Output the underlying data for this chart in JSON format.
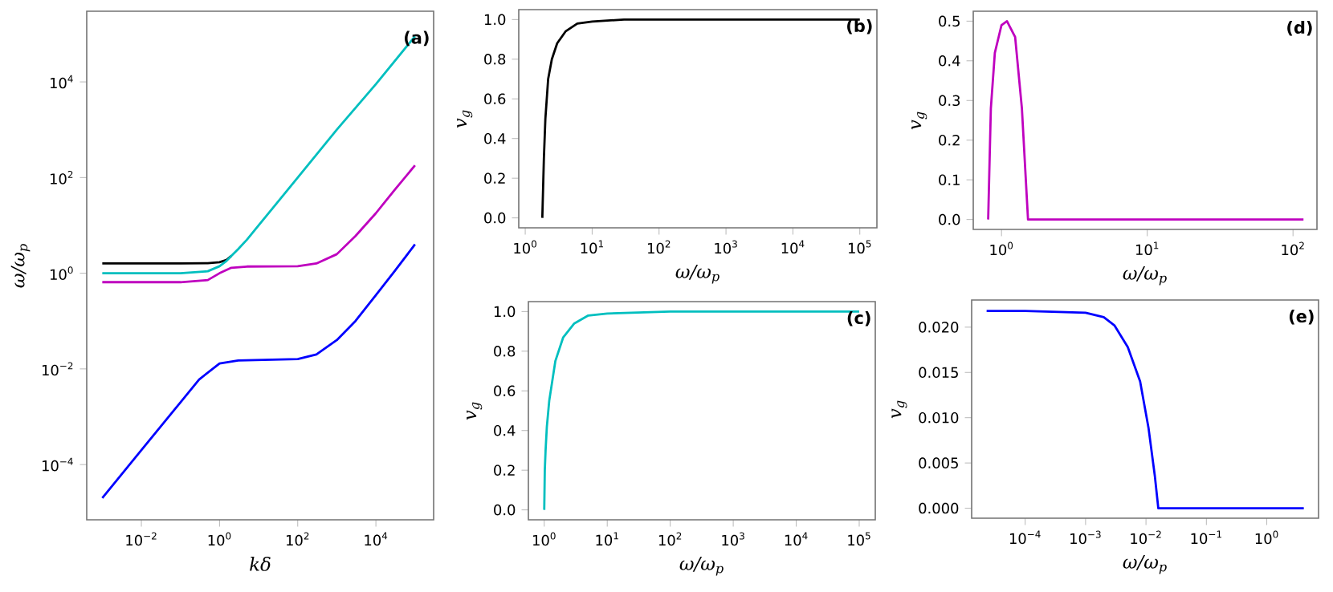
{
  "chart_data": [
    {
      "type": "line",
      "xlabel": "kδ",
      "ylabel": "ω/ω$_{p}$",
      "annotations": [
        "(a)"
      ],
      "log": "xy",
      "xlim": [
        0.0004,
        300000
      ],
      "ylim": [
        7e-06,
        300000
      ],
      "xticks": [
        {
          "value": 0.01,
          "label": "10$^{−2}$"
        },
        {
          "value": 1,
          "label": "10$^{0}$"
        },
        {
          "value": 100,
          "label": "10$^{2}$"
        },
        {
          "value": 10000,
          "label": "10$^{4}$"
        }
      ],
      "yticks": [
        {
          "value": 0.0001,
          "label": "10$^{−4}$"
        },
        {
          "value": 0.01,
          "label": "10$^{−2}$"
        },
        {
          "value": 1,
          "label": "10$^{0}$"
        },
        {
          "value": 100,
          "label": "10$^{2}$"
        },
        {
          "value": 10000,
          "label": "10$^{4}$"
        }
      ],
      "series": [
        {
          "color": "#000000",
          "x": [
            0.001,
            0.01,
            0.1,
            0.5,
            1,
            1.5,
            2
          ],
          "values": [
            1.6,
            1.6,
            1.6,
            1.62,
            1.7,
            1.9,
            2.3
          ]
        },
        {
          "color": "#00bfbf",
          "x": [
            0.001,
            0.01,
            0.1,
            0.5,
            1,
            1.5,
            2,
            3,
            5,
            10,
            100,
            1000,
            10000,
            100000
          ],
          "values": [
            1.0,
            1.0,
            1.0,
            1.1,
            1.4,
            1.8,
            2.3,
            3.2,
            5,
            10,
            100,
            1000,
            9000,
            90000
          ]
        },
        {
          "color": "#bf00bf",
          "x": [
            0.001,
            0.01,
            0.1,
            0.5,
            1,
            2,
            5,
            100,
            300,
            1000,
            3000,
            10000,
            30000,
            100000
          ],
          "values": [
            0.65,
            0.65,
            0.65,
            0.72,
            1.0,
            1.3,
            1.38,
            1.4,
            1.6,
            2.5,
            6,
            18,
            55,
            180
          ]
        },
        {
          "color": "#0000ff",
          "x": [
            0.001,
            0.01,
            0.1,
            0.3,
            1,
            3,
            100,
            300,
            1000,
            3000,
            10000,
            30000,
            100000
          ],
          "values": [
            2e-05,
            0.0002,
            0.002,
            0.006,
            0.013,
            0.015,
            0.016,
            0.02,
            0.04,
            0.1,
            0.35,
            1.1,
            4.0
          ]
        }
      ]
    },
    {
      "type": "line",
      "xlabel": "ω/ω$_{p}$",
      "ylabel": "v$_{g}$",
      "annotations": [
        "(b)"
      ],
      "log": "x",
      "xlim": [
        0.8,
        180000
      ],
      "ylim": [
        -0.05,
        1.05
      ],
      "xticks": [
        {
          "value": 1,
          "label": "10$^{0}$"
        },
        {
          "value": 10,
          "label": "10$^{1}$"
        },
        {
          "value": 100,
          "label": "10$^{2}$"
        },
        {
          "value": 1000,
          "label": "10$^{3}$"
        },
        {
          "value": 10000,
          "label": "10$^{4}$"
        },
        {
          "value": 100000,
          "label": "10$^{5}$"
        }
      ],
      "yticks": [
        {
          "value": 0,
          "label": "0.0"
        },
        {
          "value": 0.2,
          "label": "0.2"
        },
        {
          "value": 0.4,
          "label": "0.4"
        },
        {
          "value": 0.6,
          "label": "0.6"
        },
        {
          "value": 0.8,
          "label": "0.8"
        },
        {
          "value": 1,
          "label": "1.0"
        }
      ],
      "series": [
        {
          "color": "#000000",
          "x": [
            1.8,
            1.9,
            2.0,
            2.2,
            2.5,
            3,
            4,
            6,
            10,
            30,
            100000
          ],
          "values": [
            0,
            0.3,
            0.5,
            0.7,
            0.8,
            0.88,
            0.94,
            0.98,
            0.99,
            1.0,
            1.0
          ]
        }
      ]
    },
    {
      "type": "line",
      "xlabel": "ω/ω$_{p}$",
      "ylabel": "v$_{g}$",
      "annotations": [
        "(d)"
      ],
      "log": "x",
      "xlim": [
        0.64,
        146
      ],
      "ylim": [
        -0.025,
        0.525
      ],
      "xticks": [
        {
          "value": 1,
          "label": "10$^{0}$"
        },
        {
          "value": 10,
          "label": "10$^{1}$"
        },
        {
          "value": 100,
          "label": "10$^{2}$"
        }
      ],
      "yticks": [
        {
          "value": 0,
          "label": "0.0"
        },
        {
          "value": 0.1,
          "label": "0.1"
        },
        {
          "value": 0.2,
          "label": "0.2"
        },
        {
          "value": 0.3,
          "label": "0.3"
        },
        {
          "value": 0.4,
          "label": "0.4"
        },
        {
          "value": 0.5,
          "label": "0.5"
        }
      ],
      "series": [
        {
          "color": "#bf00bf",
          "x": [
            0.81,
            0.845,
            0.9,
            1.0,
            1.09,
            1.24,
            1.38,
            1.52,
            118
          ],
          "values": [
            0,
            0.28,
            0.42,
            0.49,
            0.5,
            0.46,
            0.28,
            0,
            0
          ]
        }
      ]
    },
    {
      "type": "line",
      "xlabel": "ω/ω$_{p}$",
      "ylabel": "v$_{g}$",
      "annotations": [
        "(c)"
      ],
      "log": "x",
      "xlim": [
        0.56,
        180000
      ],
      "ylim": [
        -0.05,
        1.05
      ],
      "xticks": [
        {
          "value": 1,
          "label": "10$^{0}$"
        },
        {
          "value": 10,
          "label": "10$^{1}$"
        },
        {
          "value": 100,
          "label": "10$^{2}$"
        },
        {
          "value": 1000,
          "label": "10$^{3}$"
        },
        {
          "value": 10000,
          "label": "10$^{4}$"
        },
        {
          "value": 100000,
          "label": "10$^{5}$"
        }
      ],
      "yticks": [
        {
          "value": 0,
          "label": "0.0"
        },
        {
          "value": 0.2,
          "label": "0.2"
        },
        {
          "value": 0.4,
          "label": "0.4"
        },
        {
          "value": 0.6,
          "label": "0.6"
        },
        {
          "value": 0.8,
          "label": "0.8"
        },
        {
          "value": 1,
          "label": "1.0"
        }
      ],
      "series": [
        {
          "color": "#00bfbf",
          "x": [
            1.0,
            1.02,
            1.05,
            1.1,
            1.2,
            1.5,
            2,
            3,
            5,
            10,
            100,
            100000
          ],
          "values": [
            0,
            0.2,
            0.3,
            0.42,
            0.55,
            0.75,
            0.87,
            0.94,
            0.98,
            0.99,
            1.0,
            1.0
          ]
        }
      ]
    },
    {
      "type": "line",
      "xlabel": "ω/ω$_{p}$",
      "ylabel": "v$_{g}$",
      "annotations": [
        "(e)"
      ],
      "log": "x",
      "xlim": [
        1.3e-05,
        7.2
      ],
      "ylim": [
        -0.0011,
        0.023
      ],
      "xticks": [
        {
          "value": 0.0001,
          "label": "10$^{−4}$"
        },
        {
          "value": 0.001,
          "label": "10$^{−3}$"
        },
        {
          "value": 0.01,
          "label": "10$^{−2}$"
        },
        {
          "value": 0.1,
          "label": "10$^{−1}$"
        },
        {
          "value": 1,
          "label": "10$^{0}$"
        }
      ],
      "yticks": [
        {
          "value": 0,
          "label": "0.000"
        },
        {
          "value": 0.005,
          "label": "0.005"
        },
        {
          "value": 0.01,
          "label": "0.010"
        },
        {
          "value": 0.015,
          "label": "0.015"
        },
        {
          "value": 0.02,
          "label": "0.020"
        }
      ],
      "series": [
        {
          "color": "#0000ff",
          "x": [
            2.3e-05,
            0.0001,
            0.001,
            0.002,
            0.003,
            0.005,
            0.008,
            0.011,
            0.014,
            0.016,
            4.1
          ],
          "values": [
            0.0218,
            0.0218,
            0.0216,
            0.0211,
            0.0202,
            0.0178,
            0.014,
            0.0089,
            0.0036,
            0,
            0
          ]
        }
      ]
    }
  ]
}
